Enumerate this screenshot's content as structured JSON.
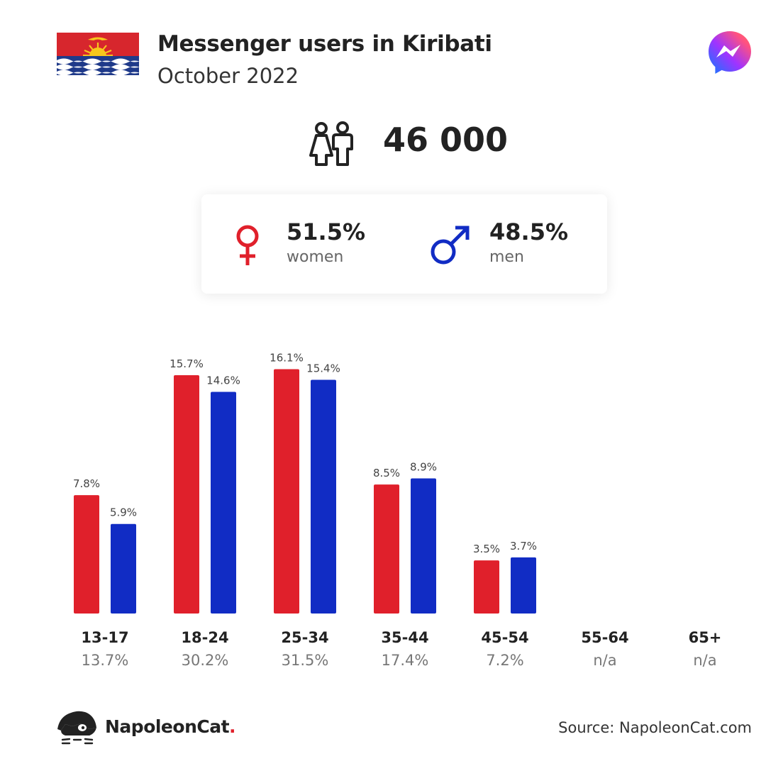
{
  "header": {
    "title": "Messenger users in Kiribati",
    "subtitle": "October 2022",
    "flag_icon": "kiribati-flag-icon",
    "app_icon": "messenger-icon"
  },
  "total": {
    "icon": "people-icon",
    "value": "46 000"
  },
  "gender": {
    "women_pct": "51.5%",
    "women_label": "women",
    "men_pct": "48.5%",
    "men_label": "men"
  },
  "colors": {
    "women": "#e0202b",
    "men": "#112cc4"
  },
  "chart_data": {
    "type": "bar",
    "categories": [
      "13-17",
      "18-24",
      "25-34",
      "35-44",
      "45-54",
      "55-64",
      "65+"
    ],
    "category_totals": [
      "13.7%",
      "30.2%",
      "31.5%",
      "17.4%",
      "7.2%",
      "n/a",
      "n/a"
    ],
    "series": [
      {
        "name": "women",
        "color": "#e0202b",
        "values": [
          7.8,
          15.7,
          16.1,
          8.5,
          3.5,
          null,
          null
        ],
        "labels": [
          "7.8%",
          "15.7%",
          "16.1%",
          "8.5%",
          "3.5%",
          "",
          ""
        ]
      },
      {
        "name": "men",
        "color": "#112cc4",
        "values": [
          5.9,
          14.6,
          15.4,
          8.9,
          3.7,
          null,
          null
        ],
        "labels": [
          "5.9%",
          "14.6%",
          "15.4%",
          "8.9%",
          "3.7%",
          "",
          ""
        ]
      }
    ]
  },
  "footer": {
    "brand_name": "NapoleonCat",
    "brand_dot": ".",
    "logo_icon": "napoleoncat-logo-icon",
    "source": "Source: NapoleonCat.com"
  }
}
